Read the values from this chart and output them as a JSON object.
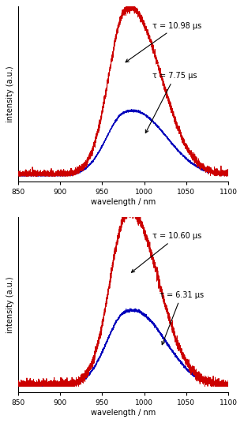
{
  "xlim": [
    850,
    1100
  ],
  "xticks": [
    850,
    900,
    950,
    1000,
    1050,
    1100
  ],
  "xlabel": "wavelength / nm",
  "ylabel": "intensity (a.u.)",
  "bg_color": "#ffffff",
  "top": {
    "red_tau": "τ = 10.98 μs",
    "blue_tau": "τ = 7.75 μs"
  },
  "bottom": {
    "red_tau": "τ = 10.60 μs",
    "blue_tau": "τ = 6.31 μs"
  },
  "red_color": "#cc0000",
  "blue_color": "#0000bb"
}
